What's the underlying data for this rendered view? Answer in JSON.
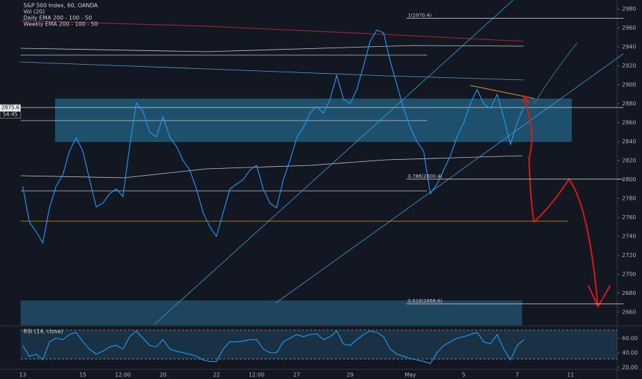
{
  "chart_data": [
    {
      "type": "line",
      "title": "S&P 500 Index, 60, OANDA",
      "legend": [
        "Vol (20)",
        "Daily EMA 200 - 100 - 50",
        "Weekly EMA 200 - 100 - 50"
      ],
      "categories": [
        "13",
        null,
        null,
        null,
        null,
        null,
        null,
        null,
        null,
        "15",
        null,
        null,
        null,
        null,
        null,
        "12:00",
        null,
        null,
        null,
        null,
        null,
        "20",
        null,
        null,
        null,
        null,
        null,
        null,
        null,
        "22",
        null,
        null,
        null,
        null,
        null,
        "12:00",
        null,
        null,
        null,
        null,
        null,
        "27",
        null,
        null,
        null,
        null,
        null,
        null,
        null,
        "29",
        null,
        null,
        null,
        null,
        null,
        null,
        null,
        null,
        "May",
        null,
        null,
        null,
        null,
        null,
        null,
        null,
        "5",
        null,
        null,
        null,
        null,
        null,
        null,
        null,
        "7",
        null,
        null,
        null,
        null,
        null,
        null,
        null,
        "11",
        null,
        null,
        null,
        null,
        null,
        null,
        null,
        null,
        null
      ],
      "values": [
        2793,
        2755,
        2745,
        2733,
        2770,
        2793,
        2805,
        2830,
        2844,
        2830,
        2800,
        2771,
        2775,
        2785,
        2790,
        2782,
        2835,
        2881,
        2872,
        2850,
        2845,
        2866,
        2845,
        2835,
        2820,
        2810,
        2790,
        2765,
        2750,
        2740,
        2765,
        2790,
        2795,
        2800,
        2810,
        2815,
        2790,
        2775,
        2770,
        2800,
        2820,
        2844,
        2855,
        2870,
        2877,
        2870,
        2885,
        2910,
        2885,
        2880,
        2895,
        2920,
        2946,
        2958,
        2955,
        2925,
        2900,
        2875,
        2855,
        2840,
        2830,
        2785,
        2795,
        2810,
        2825,
        2845,
        2860,
        2880,
        2895,
        2880,
        2875,
        2890,
        2865,
        2837,
        2860,
        2877,
        null,
        null,
        null,
        null,
        null,
        null,
        null,
        null,
        null,
        null,
        null,
        null,
        null,
        null,
        null,
        null
      ],
      "color": "#2196f3",
      "ylim": [
        2646,
        2986
      ],
      "yticks": [
        2660,
        2680,
        2700,
        2720,
        2740,
        2760,
        2780,
        2800,
        2820,
        2840,
        2860,
        2880,
        2900,
        2920,
        2940,
        2960,
        2980
      ],
      "levels": [
        {
          "value": 2970.4,
          "label": "1(2970.4)"
        },
        {
          "value": 2800.4,
          "label": "0.786(2800.4)"
        },
        {
          "value": 2668.6,
          "label": "0.618(2668.6)"
        }
      ],
      "last_price": {
        "value": 2875.6,
        "label": "2875.6"
      },
      "countdown": "54:45"
    },
    {
      "type": "line",
      "title": "RSI (14, close)",
      "values": [
        50,
        35,
        38,
        30,
        55,
        60,
        58,
        65,
        68,
        55,
        45,
        38,
        42,
        48,
        50,
        45,
        62,
        70,
        60,
        50,
        48,
        58,
        45,
        42,
        40,
        38,
        35,
        30,
        28,
        28,
        45,
        55,
        55,
        56,
        58,
        58,
        45,
        40,
        40,
        55,
        60,
        65,
        62,
        65,
        66,
        58,
        62,
        70,
        52,
        50,
        58,
        65,
        70,
        68,
        62,
        45,
        38,
        35,
        32,
        30,
        28,
        25,
        40,
        50,
        55,
        60,
        62,
        65,
        68,
        55,
        52,
        65,
        45,
        30,
        50,
        58,
        null,
        null,
        null,
        null,
        null,
        null,
        null,
        null,
        null,
        null,
        null,
        null,
        null,
        null,
        null,
        null
      ],
      "color": "#2196f3",
      "ylim": [
        18,
        74
      ],
      "yticks": [
        {
          "value": 60,
          "label": "60.00"
        },
        {
          "value": 40,
          "label": "40.00"
        },
        {
          "value": 20,
          "label": "20.00"
        }
      ]
    }
  ]
}
